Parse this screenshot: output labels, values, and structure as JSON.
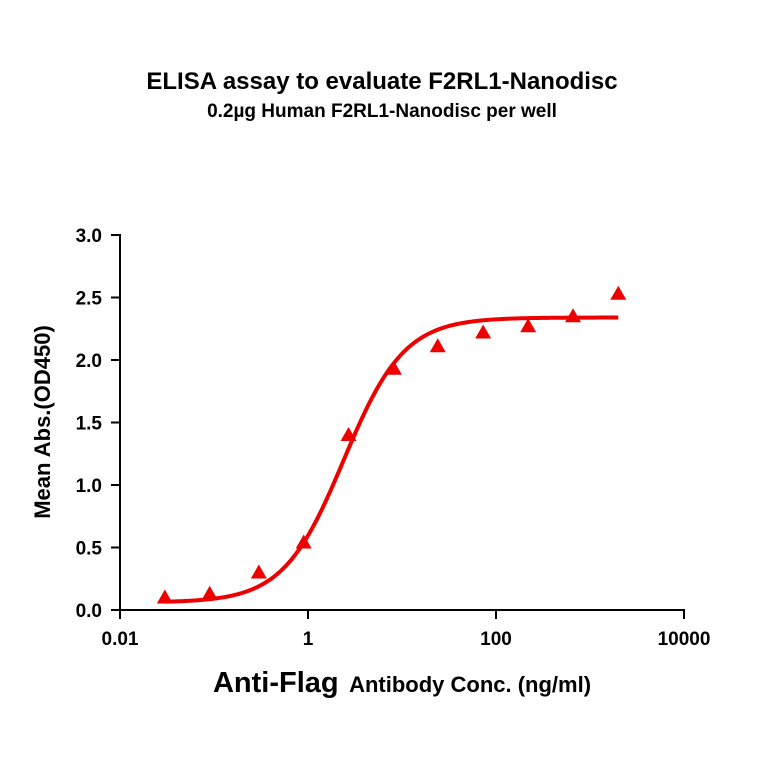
{
  "title": "ELISA assay to evaluate F2RL1-Nanodisc",
  "subtitle": "0.2µg Human F2RL1-Nanodisc per well",
  "xaxis": {
    "label_main": "Anti-Flag",
    "label_rest": "Antibody Conc. (ng/ml)",
    "ticks": [
      "0.01",
      "1",
      "100",
      "10000"
    ]
  },
  "yaxis": {
    "label": "Mean Abs.(OD450)",
    "ticks": [
      "0.0",
      "0.5",
      "1.0",
      "1.5",
      "2.0",
      "2.5",
      "3.0"
    ]
  },
  "colors": {
    "series": "#ee0000",
    "axis": "#000000"
  },
  "chart_data": {
    "type": "scatter",
    "title": "ELISA assay to evaluate F2RL1-Nanodisc",
    "subtitle": "0.2µg Human F2RL1-Nanodisc per well",
    "xlabel": "Anti-Flag Antibody Conc. (ng/ml)",
    "ylabel": "Mean Abs.(OD450)",
    "xscale": "log",
    "xlim": [
      0.01,
      10000
    ],
    "ylim": [
      0.0,
      3.0
    ],
    "x_ticks": [
      0.01,
      1,
      100,
      10000
    ],
    "y_ticks": [
      0.0,
      0.5,
      1.0,
      1.5,
      2.0,
      2.5,
      3.0
    ],
    "grid": false,
    "legend": "none",
    "series": [
      {
        "name": "Mean Abs. (OD450)",
        "marker": "triangle",
        "color": "#ee0000",
        "x": [
          0.03,
          0.09,
          0.3,
          0.9,
          2.7,
          8.2,
          24,
          73,
          220,
          660,
          2000
        ],
        "y": [
          0.1,
          0.13,
          0.3,
          0.54,
          1.4,
          1.93,
          2.11,
          2.22,
          2.27,
          2.35,
          2.53
        ]
      }
    ],
    "fit": {
      "type": "4PL",
      "color": "#ee0000",
      "bottom": 0.06,
      "top": 2.34,
      "ec50": 2.4,
      "hill": 1.35,
      "x_range": [
        0.03,
        2000
      ]
    }
  }
}
